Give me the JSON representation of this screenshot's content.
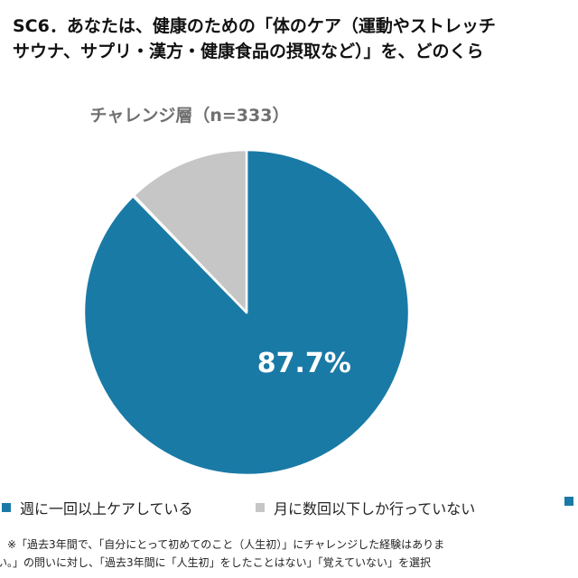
{
  "question": {
    "line1": "SC6．あなたは、健康のための「体のケア（運動やストレッチ",
    "line2": "サウナ、サプリ・漢方・健康食品の摂取など）」を、どのくら"
  },
  "chart_data": {
    "type": "pie",
    "title": "チャレンジ層（n=333）",
    "start_angle_deg": 0,
    "direction": "clockwise",
    "slices": [
      {
        "label": "週に一回以上ケアしている",
        "value": 87.7,
        "color": "#1a7aa6",
        "data_label": "87.7%"
      },
      {
        "label": "",
        "value": 0.1,
        "color": "#1a7aa6",
        "data_label": ""
      },
      {
        "label": "月に数回以下しか行っていない",
        "value": 12.2,
        "color": "#c6c6c6",
        "data_label": ""
      }
    ],
    "legend": {
      "placement": "bottom",
      "items": [
        {
          "label": "週に一回以上ケアしている",
          "color": "#1a7aa6"
        },
        {
          "label": "月に数回以下しか行っていない",
          "color": "#c6c6c6"
        },
        {
          "label": "",
          "color": "#1a7aa6"
        }
      ]
    }
  },
  "footnote": {
    "line1": "※「過去3年間で、「自分にとって初めてのこと（人生初）」にチャレンジした経験はありま",
    "line2": "い。」の問いに対し、「過去3年間に「人生初」をしたことはない」「覚えていない」を選択"
  }
}
